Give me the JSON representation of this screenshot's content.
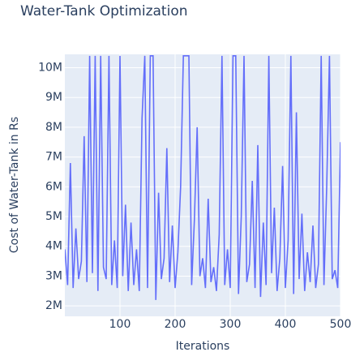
{
  "chart_data": {
    "type": "line",
    "title": "Water-Tank Optimization",
    "xlabel": "Iterations",
    "ylabel": "Cost of Water-Tank in Rs",
    "x": [
      0,
      5,
      10,
      15,
      20,
      25,
      30,
      35,
      40,
      45,
      50,
      55,
      60,
      65,
      70,
      75,
      80,
      85,
      90,
      95,
      100,
      105,
      110,
      115,
      120,
      125,
      130,
      135,
      140,
      145,
      150,
      155,
      160,
      165,
      170,
      175,
      180,
      185,
      190,
      195,
      200,
      205,
      210,
      215,
      220,
      225,
      230,
      235,
      240,
      245,
      250,
      255,
      260,
      265,
      270,
      275,
      280,
      285,
      290,
      295,
      300,
      305,
      310,
      315,
      320,
      325,
      330,
      335,
      340,
      345,
      350,
      355,
      360,
      365,
      370,
      375,
      380,
      385,
      390,
      395,
      400,
      405,
      410,
      415,
      420,
      425,
      430,
      435,
      440,
      445,
      450,
      455,
      460,
      465,
      470,
      475,
      480,
      485,
      490,
      495,
      500
    ],
    "series": [
      {
        "name": "cost",
        "color": "#636efa",
        "values": [
          3900000,
          2700000,
          6800000,
          2600000,
          4600000,
          2900000,
          3500000,
          7700000,
          2800000,
          10400000,
          3100000,
          10400000,
          2500000,
          10400000,
          3300000,
          2900000,
          10400000,
          2700000,
          4200000,
          2600000,
          10400000,
          3000000,
          5400000,
          2500000,
          4800000,
          2700000,
          3900000,
          2500000,
          8300000,
          10400000,
          2600000,
          10400000,
          10400000,
          2200000,
          5800000,
          2900000,
          3600000,
          7300000,
          2800000,
          4700000,
          2600000,
          3800000,
          6000000,
          10400000,
          10400000,
          10400000,
          2700000,
          4900000,
          8000000,
          3000000,
          3600000,
          2600000,
          5600000,
          2800000,
          3300000,
          2500000,
          4400000,
          10400000,
          2700000,
          3900000,
          2600000,
          10400000,
          10400000,
          2400000,
          5000000,
          10400000,
          2800000,
          3400000,
          6200000,
          2600000,
          7400000,
          2300000,
          4800000,
          2700000,
          10400000,
          3100000,
          5300000,
          2500000,
          3600000,
          6700000,
          2600000,
          4200000,
          10400000,
          2400000,
          8500000,
          2900000,
          5100000,
          2500000,
          3800000,
          2800000,
          4700000,
          2600000,
          3400000,
          10400000,
          2700000,
          6000000,
          10400000,
          2900000,
          3200000,
          2600000,
          7500000
        ]
      }
    ],
    "xlim": [
      0,
      500
    ],
    "xticks": [
      100,
      200,
      300,
      400,
      500
    ],
    "ylim": [
      1650000,
      10450000
    ],
    "yticks": [
      {
        "value": 2000000,
        "label": "2M"
      },
      {
        "value": 3000000,
        "label": "3M"
      },
      {
        "value": 4000000,
        "label": "4M"
      },
      {
        "value": 5000000,
        "label": "5M"
      },
      {
        "value": 6000000,
        "label": "6M"
      },
      {
        "value": 7000000,
        "label": "7M"
      },
      {
        "value": 8000000,
        "label": "8M"
      },
      {
        "value": 9000000,
        "label": "9M"
      },
      {
        "value": 10000000,
        "label": "10M"
      }
    ],
    "grid": true
  }
}
